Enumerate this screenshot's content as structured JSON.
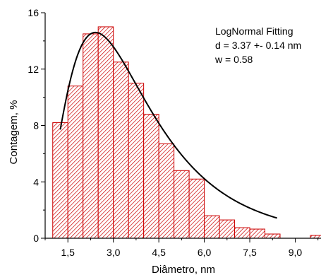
{
  "chart_data": {
    "type": "bar",
    "title": "",
    "xlabel": "Diâmetro, nm",
    "ylabel": "Contagem, %",
    "xlim": [
      0.75,
      9.85
    ],
    "ylim": [
      0,
      16
    ],
    "x_ticks": [
      {
        "value": 1.5,
        "label": "1,5"
      },
      {
        "value": 3.0,
        "label": "3,0"
      },
      {
        "value": 4.5,
        "label": "4,5"
      },
      {
        "value": 6.0,
        "label": "6,0"
      },
      {
        "value": 7.5,
        "label": "7,5"
      },
      {
        "value": 9.0,
        "label": "9,0"
      }
    ],
    "y_ticks": [
      {
        "value": 0,
        "label": "0"
      },
      {
        "value": 4,
        "label": "4"
      },
      {
        "value": 8,
        "label": "8"
      },
      {
        "value": 12,
        "label": "12"
      },
      {
        "value": 16,
        "label": "16"
      }
    ],
    "bin_width": 0.5,
    "bins": [
      {
        "x": 1.25,
        "value": 8.2
      },
      {
        "x": 1.75,
        "value": 10.8
      },
      {
        "x": 2.25,
        "value": 14.5
      },
      {
        "x": 2.75,
        "value": 15.0
      },
      {
        "x": 3.25,
        "value": 12.5
      },
      {
        "x": 3.75,
        "value": 11.0
      },
      {
        "x": 4.25,
        "value": 8.8
      },
      {
        "x": 4.75,
        "value": 6.7
      },
      {
        "x": 5.25,
        "value": 4.8
      },
      {
        "x": 5.75,
        "value": 4.2
      },
      {
        "x": 6.25,
        "value": 1.6
      },
      {
        "x": 6.75,
        "value": 1.3
      },
      {
        "x": 7.25,
        "value": 0.75
      },
      {
        "x": 7.75,
        "value": 0.65
      },
      {
        "x": 8.25,
        "value": 0.3
      },
      {
        "x": 8.75,
        "value": 0.0
      },
      {
        "x": 9.25,
        "value": 0.0
      },
      {
        "x": 9.75,
        "value": 0.2
      }
    ],
    "fit": {
      "type": "lognormal",
      "d": 3.37,
      "w": 0.58,
      "x_range": [
        1.25,
        8.4
      ],
      "peak_value": 14.6
    },
    "annotation": {
      "line1": "LogNormal Fitting",
      "line2": "d = 3.37 +- 0.14 nm",
      "line3": "w = 0.58"
    },
    "colors": {
      "bar_stroke": "#cc0000",
      "bar_hatch": "#cc0000",
      "fit_line": "#000000",
      "axis": "#000000"
    }
  }
}
